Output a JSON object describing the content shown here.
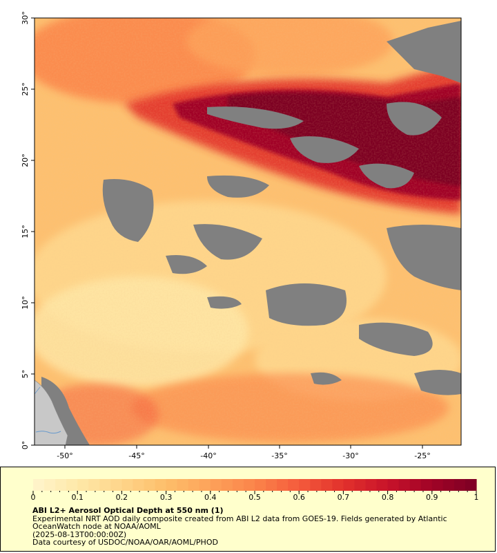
{
  "map": {
    "lon_ticks": [
      "-50°",
      "-45°",
      "-40°",
      "-35°",
      "-30°",
      "-25°"
    ],
    "lat_ticks": [
      "0°",
      "5°",
      "10°",
      "15°",
      "20°",
      "25°",
      "30°"
    ],
    "colors": {
      "no_data": "#808080",
      "land": "#c8c8c8",
      "river": "#6699cc",
      "frame": "#000000"
    }
  },
  "colorbar": {
    "labels": [
      "0",
      "0.1",
      "0.2",
      "0.3",
      "0.4",
      "0.5",
      "0.6",
      "0.7",
      "0.8",
      "0.9",
      "1"
    ],
    "min": 0,
    "max": 1,
    "colors": [
      "#fff5cc",
      "#fee8a8",
      "#fed58a",
      "#fdbe6a",
      "#fda25a",
      "#fb844a",
      "#f45b3c",
      "#e2312c",
      "#c8132a",
      "#a00326",
      "#7d0024"
    ]
  },
  "legend": {
    "title": "ABI L2+ Aerosol Optical Depth at 550 nm (1)",
    "line1": "Experimental NRT AOD daily composite created from ABI L2 data from GOES-19. Fields generated by Atlantic OceanWatch node at NOAA/AOML",
    "line2": "(2025-08-13T00:00:00Z)",
    "line3": "Data courtesy of USDOC/NOAA/OAR/AOML/PHOD"
  }
}
